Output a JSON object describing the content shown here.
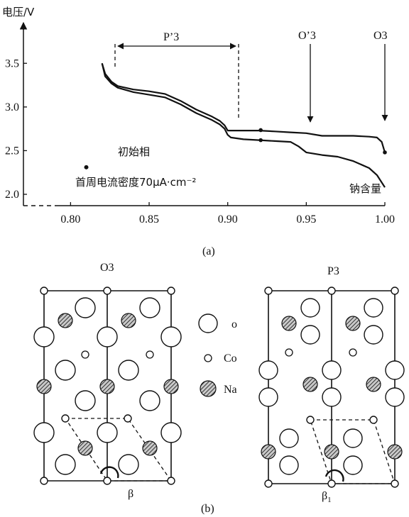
{
  "chart_data": {
    "type": "line",
    "ylabel": "电压/V",
    "xlim": [
      0.77,
      1.0
    ],
    "ylim": [
      1.87,
      3.9
    ],
    "x_ticks": [
      "0.80",
      "0.85",
      "0.90",
      "0.95",
      "1.00"
    ],
    "y_ticks": [
      "2.0",
      "2.5",
      "3.0",
      "3.5"
    ],
    "series": [
      {
        "x": [
          0.82,
          0.822,
          0.826,
          0.83,
          0.84,
          0.85,
          0.86,
          0.87,
          0.88,
          0.89,
          0.895,
          0.898,
          0.9,
          0.902,
          0.91,
          0.92,
          0.93,
          0.94,
          0.95,
          0.96,
          0.97,
          0.98,
          0.99,
          0.995,
          0.998,
          1.0
        ],
        "y": [
          3.5,
          3.38,
          3.29,
          3.24,
          3.2,
          3.18,
          3.15,
          3.07,
          2.97,
          2.89,
          2.84,
          2.79,
          2.73,
          2.73,
          2.73,
          2.73,
          2.72,
          2.71,
          2.7,
          2.67,
          2.67,
          2.67,
          2.66,
          2.65,
          2.6,
          2.48
        ]
      },
      {
        "x": [
          0.82,
          0.822,
          0.826,
          0.83,
          0.84,
          0.85,
          0.86,
          0.87,
          0.88,
          0.89,
          0.895,
          0.898,
          0.9,
          0.902,
          0.91,
          0.92,
          0.93,
          0.94,
          0.945,
          0.95,
          0.96,
          0.97,
          0.98,
          0.99,
          0.995,
          1.0
        ],
        "y": [
          3.5,
          3.35,
          3.27,
          3.22,
          3.17,
          3.14,
          3.11,
          3.03,
          2.93,
          2.85,
          2.8,
          2.75,
          2.68,
          2.65,
          2.63,
          2.62,
          2.61,
          2.6,
          2.55,
          2.48,
          2.45,
          2.43,
          2.38,
          2.3,
          2.22,
          2.08
        ]
      }
    ],
    "markers": [
      {
        "x": 0.921,
        "y": 2.735
      },
      {
        "x": 0.921,
        "y": 2.62
      },
      {
        "x": 1.0,
        "y": 2.48
      }
    ],
    "annotations": {
      "p3": {
        "label": "P’3",
        "x_from": 0.82,
        "x_to": 0.9
      },
      "o3prime": {
        "label": "O’3",
        "x": 0.95
      },
      "o3": {
        "label": "O3",
        "x": 1.0
      },
      "initial_phase": {
        "label": "初始相",
        "marker": {
          "x": 0.81,
          "y": 2.31
        }
      },
      "current_density": "首周电流密度70μA·cm⁻²",
      "sodium_content": "钠含量"
    }
  },
  "panel_a_label": "(a)",
  "panel_b_label": "(b)",
  "structures": {
    "left_title": "O3",
    "right_title": "P3",
    "left_angle": "β",
    "right_angle": "β",
    "right_angle_subscript": "1"
  },
  "legend": [
    {
      "label": "o",
      "style": "large-open"
    },
    {
      "label": "Co",
      "style": "small-open"
    },
    {
      "label": "Na",
      "style": "hatched"
    }
  ]
}
